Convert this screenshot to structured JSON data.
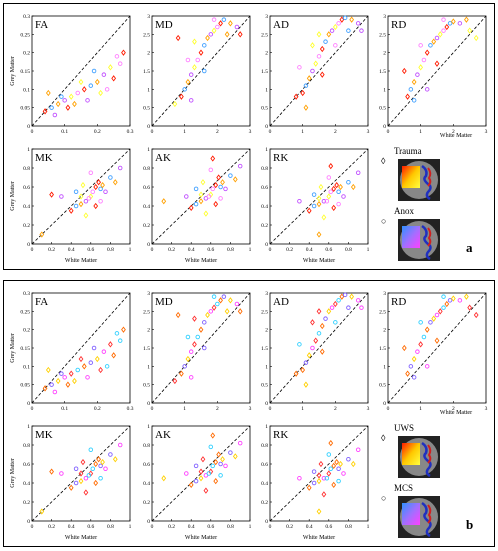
{
  "panels": [
    {
      "label": "a",
      "ylabel_row1": "Grey Matter",
      "ylabel_row2": "Grey Matter",
      "xlabel_row2": "White Matter",
      "rd_xlabel": "White Matter",
      "legend": [
        {
          "marker": "◊",
          "text": "Trauma",
          "gradient": [
            "#ff1a00",
            "#ffc800",
            "#ffff40"
          ]
        },
        {
          "marker": "○",
          "text": "Anox",
          "gradient": [
            "#3090ff",
            "#a070ff",
            "#ff40ff"
          ]
        }
      ]
    },
    {
      "label": "b",
      "ylabel_row1": "Grey Matter",
      "ylabel_row2": "Grey Matter",
      "xlabel_row2": "White Matter",
      "rd_xlabel": "White Matter",
      "legend": [
        {
          "marker": "◊",
          "text": "UWS",
          "gradient": [
            "#ff1a00",
            "#ffc800",
            "#ffff40"
          ]
        },
        {
          "marker": "○",
          "text": "MCS",
          "gradient": [
            "#3090ff",
            "#a070ff",
            "#ff40ff"
          ]
        }
      ]
    }
  ],
  "chart_data": [
    {
      "type": "scatter",
      "title": "FA",
      "xlim": [
        0,
        0.3
      ],
      "ylim": [
        0,
        0.3
      ],
      "xticks": [
        "0",
        "0.1",
        "0.2",
        "0.3"
      ],
      "yticks": [
        "0",
        "0.05",
        "0.1",
        "0.15",
        "0.2",
        "0.25",
        "0.3"
      ],
      "reference_line": "identity",
      "points": [
        [
          0.04,
          0.04
        ],
        [
          0.06,
          0.05
        ],
        [
          0.08,
          0.06
        ],
        [
          0.1,
          0.07
        ],
        [
          0.12,
          0.08
        ],
        [
          0.14,
          0.09
        ],
        [
          0.16,
          0.1
        ],
        [
          0.18,
          0.11
        ],
        [
          0.2,
          0.12
        ],
        [
          0.22,
          0.14
        ],
        [
          0.24,
          0.16
        ],
        [
          0.26,
          0.19
        ],
        [
          0.28,
          0.2
        ],
        [
          0.09,
          0.08
        ],
        [
          0.13,
          0.06
        ],
        [
          0.17,
          0.07
        ],
        [
          0.21,
          0.09
        ],
        [
          0.23,
          0.1
        ],
        [
          0.25,
          0.13
        ],
        [
          0.19,
          0.15
        ],
        [
          0.05,
          0.09
        ],
        [
          0.07,
          0.03
        ],
        [
          0.15,
          0.12
        ],
        [
          0.27,
          0.17
        ],
        [
          0.11,
          0.05
        ]
      ]
    },
    {
      "type": "scatter",
      "title": "MD",
      "xlim": [
        0,
        3
      ],
      "ylim": [
        0,
        3
      ],
      "xticks": [
        "0",
        "1",
        "2",
        "3"
      ],
      "yticks": [
        "0",
        "0.5",
        "1",
        "1.5",
        "2",
        "2.5",
        "3"
      ],
      "reference_line": "identity",
      "points": [
        [
          0.9,
          0.8
        ],
        [
          1.0,
          1.0
        ],
        [
          1.1,
          1.2
        ],
        [
          1.2,
          1.4
        ],
        [
          1.3,
          1.6
        ],
        [
          1.4,
          1.8
        ],
        [
          1.5,
          2.0
        ],
        [
          1.6,
          2.2
        ],
        [
          1.7,
          2.4
        ],
        [
          1.8,
          2.5
        ],
        [
          1.9,
          2.6
        ],
        [
          2.0,
          2.7
        ],
        [
          2.1,
          2.8
        ],
        [
          2.2,
          2.9
        ],
        [
          2.4,
          2.8
        ],
        [
          2.6,
          2.7
        ],
        [
          1.3,
          2.3
        ],
        [
          1.1,
          1.8
        ],
        [
          0.8,
          2.4
        ],
        [
          1.6,
          1.5
        ],
        [
          2.3,
          2.5
        ],
        [
          1.2,
          0.7
        ],
        [
          0.7,
          0.6
        ],
        [
          1.9,
          2.9
        ],
        [
          2.7,
          2.5
        ]
      ]
    },
    {
      "type": "scatter",
      "title": "AD",
      "xlim": [
        0,
        3
      ],
      "ylim": [
        0,
        3
      ],
      "xticks": [
        "0",
        "1",
        "2",
        "3"
      ],
      "yticks": [
        "0",
        "0.5",
        "1",
        "1.5",
        "2",
        "2.5",
        "3"
      ],
      "reference_line": "identity",
      "points": [
        [
          1.0,
          0.9
        ],
        [
          1.1,
          1.1
        ],
        [
          1.2,
          1.3
        ],
        [
          1.3,
          1.5
        ],
        [
          1.4,
          1.7
        ],
        [
          1.5,
          1.9
        ],
        [
          1.6,
          2.1
        ],
        [
          1.7,
          2.3
        ],
        [
          1.8,
          2.5
        ],
        [
          1.9,
          2.6
        ],
        [
          2.0,
          2.7
        ],
        [
          2.1,
          2.8
        ],
        [
          2.2,
          2.9
        ],
        [
          2.3,
          2.95
        ],
        [
          2.5,
          2.9
        ],
        [
          2.7,
          2.8
        ],
        [
          1.3,
          2.2
        ],
        [
          0.9,
          1.6
        ],
        [
          1.6,
          1.4
        ],
        [
          2.4,
          2.6
        ],
        [
          1.1,
          0.5
        ],
        [
          2.8,
          2.6
        ],
        [
          1.5,
          2.5
        ],
        [
          2.0,
          2.2
        ],
        [
          0.8,
          0.8
        ]
      ]
    },
    {
      "type": "scatter",
      "title": "RD",
      "xlim": [
        0,
        3
      ],
      "ylim": [
        0,
        3
      ],
      "xticks": [
        "0",
        "1",
        "2",
        "3"
      ],
      "yticks": [
        "0",
        "0.5",
        "1",
        "1.5",
        "2",
        "2.5",
        "3"
      ],
      "reference_line": "identity",
      "points": [
        [
          0.6,
          0.8
        ],
        [
          0.7,
          1.0
        ],
        [
          0.8,
          1.2
        ],
        [
          0.9,
          1.4
        ],
        [
          1.0,
          1.6
        ],
        [
          1.1,
          1.8
        ],
        [
          1.2,
          2.0
        ],
        [
          1.3,
          2.2
        ],
        [
          1.4,
          2.3
        ],
        [
          1.5,
          2.4
        ],
        [
          1.6,
          2.5
        ],
        [
          1.7,
          2.6
        ],
        [
          1.8,
          2.7
        ],
        [
          1.9,
          2.8
        ],
        [
          2.0,
          2.85
        ],
        [
          2.2,
          2.8
        ],
        [
          2.5,
          2.6
        ],
        [
          1.0,
          2.2
        ],
        [
          1.5,
          1.7
        ],
        [
          0.8,
          0.7
        ],
        [
          2.4,
          2.9
        ],
        [
          1.2,
          1.0
        ],
        [
          2.7,
          2.4
        ],
        [
          1.7,
          2.9
        ],
        [
          0.5,
          1.5
        ]
      ]
    },
    {
      "type": "scatter",
      "title": "MK",
      "xlim": [
        0,
        1
      ],
      "ylim": [
        0,
        1
      ],
      "xticks": [
        "0",
        "0.2",
        "0.4",
        "0.6",
        "0.8",
        "1"
      ],
      "yticks": [
        "0",
        "0.2",
        "0.4",
        "0.6",
        "0.8",
        "1"
      ],
      "reference_line": "identity",
      "points": [
        [
          0.4,
          0.35
        ],
        [
          0.45,
          0.4
        ],
        [
          0.5,
          0.42
        ],
        [
          0.55,
          0.45
        ],
        [
          0.6,
          0.5
        ],
        [
          0.62,
          0.55
        ],
        [
          0.65,
          0.6
        ],
        [
          0.7,
          0.58
        ],
        [
          0.72,
          0.62
        ],
        [
          0.75,
          0.55
        ],
        [
          0.5,
          0.5
        ],
        [
          0.58,
          0.48
        ],
        [
          0.68,
          0.65
        ],
        [
          0.8,
          0.7
        ],
        [
          0.85,
          0.65
        ],
        [
          0.3,
          0.5
        ],
        [
          0.55,
          0.3
        ],
        [
          0.6,
          0.75
        ],
        [
          0.65,
          0.4
        ],
        [
          0.45,
          0.55
        ],
        [
          0.1,
          0.1
        ],
        [
          0.9,
          0.8
        ],
        [
          0.52,
          0.62
        ],
        [
          0.7,
          0.45
        ],
        [
          0.2,
          0.52
        ]
      ]
    },
    {
      "type": "scatter",
      "title": "AK",
      "xlim": [
        0,
        1
      ],
      "ylim": [
        0,
        1
      ],
      "xticks": [
        "0",
        "0.2",
        "0.4",
        "0.6",
        "0.8",
        "1"
      ],
      "yticks": [
        "0",
        "0.2",
        "0.4",
        "0.6",
        "0.8",
        "1"
      ],
      "reference_line": "identity",
      "points": [
        [
          0.4,
          0.38
        ],
        [
          0.45,
          0.42
        ],
        [
          0.5,
          0.45
        ],
        [
          0.55,
          0.48
        ],
        [
          0.6,
          0.52
        ],
        [
          0.62,
          0.58
        ],
        [
          0.65,
          0.62
        ],
        [
          0.7,
          0.6
        ],
        [
          0.72,
          0.65
        ],
        [
          0.75,
          0.58
        ],
        [
          0.5,
          0.52
        ],
        [
          0.58,
          0.5
        ],
        [
          0.68,
          0.7
        ],
        [
          0.8,
          0.72
        ],
        [
          0.85,
          0.68
        ],
        [
          0.35,
          0.5
        ],
        [
          0.55,
          0.32
        ],
        [
          0.6,
          0.78
        ],
        [
          0.65,
          0.42
        ],
        [
          0.45,
          0.58
        ],
        [
          0.12,
          0.45
        ],
        [
          0.9,
          0.82
        ],
        [
          0.52,
          0.65
        ],
        [
          0.7,
          0.48
        ],
        [
          0.62,
          0.9
        ]
      ]
    },
    {
      "type": "scatter",
      "title": "RK",
      "xlim": [
        0,
        1
      ],
      "ylim": [
        0,
        1
      ],
      "xticks": [
        "0",
        "0.2",
        "0.4",
        "0.6",
        "0.8",
        "1"
      ],
      "yticks": [
        "0",
        "0.2",
        "0.4",
        "0.6",
        "0.8",
        "1"
      ],
      "reference_line": "identity",
      "points": [
        [
          0.4,
          0.35
        ],
        [
          0.45,
          0.4
        ],
        [
          0.5,
          0.42
        ],
        [
          0.55,
          0.45
        ],
        [
          0.6,
          0.5
        ],
        [
          0.62,
          0.55
        ],
        [
          0.65,
          0.58
        ],
        [
          0.7,
          0.55
        ],
        [
          0.72,
          0.6
        ],
        [
          0.75,
          0.5
        ],
        [
          0.5,
          0.48
        ],
        [
          0.58,
          0.45
        ],
        [
          0.68,
          0.62
        ],
        [
          0.8,
          0.65
        ],
        [
          0.85,
          0.6
        ],
        [
          0.3,
          0.45
        ],
        [
          0.55,
          0.28
        ],
        [
          0.6,
          0.7
        ],
        [
          0.65,
          0.38
        ],
        [
          0.45,
          0.52
        ],
        [
          0.5,
          0.1
        ],
        [
          0.9,
          0.75
        ],
        [
          0.52,
          0.6
        ],
        [
          0.7,
          0.42
        ],
        [
          0.62,
          0.82
        ]
      ]
    }
  ]
}
